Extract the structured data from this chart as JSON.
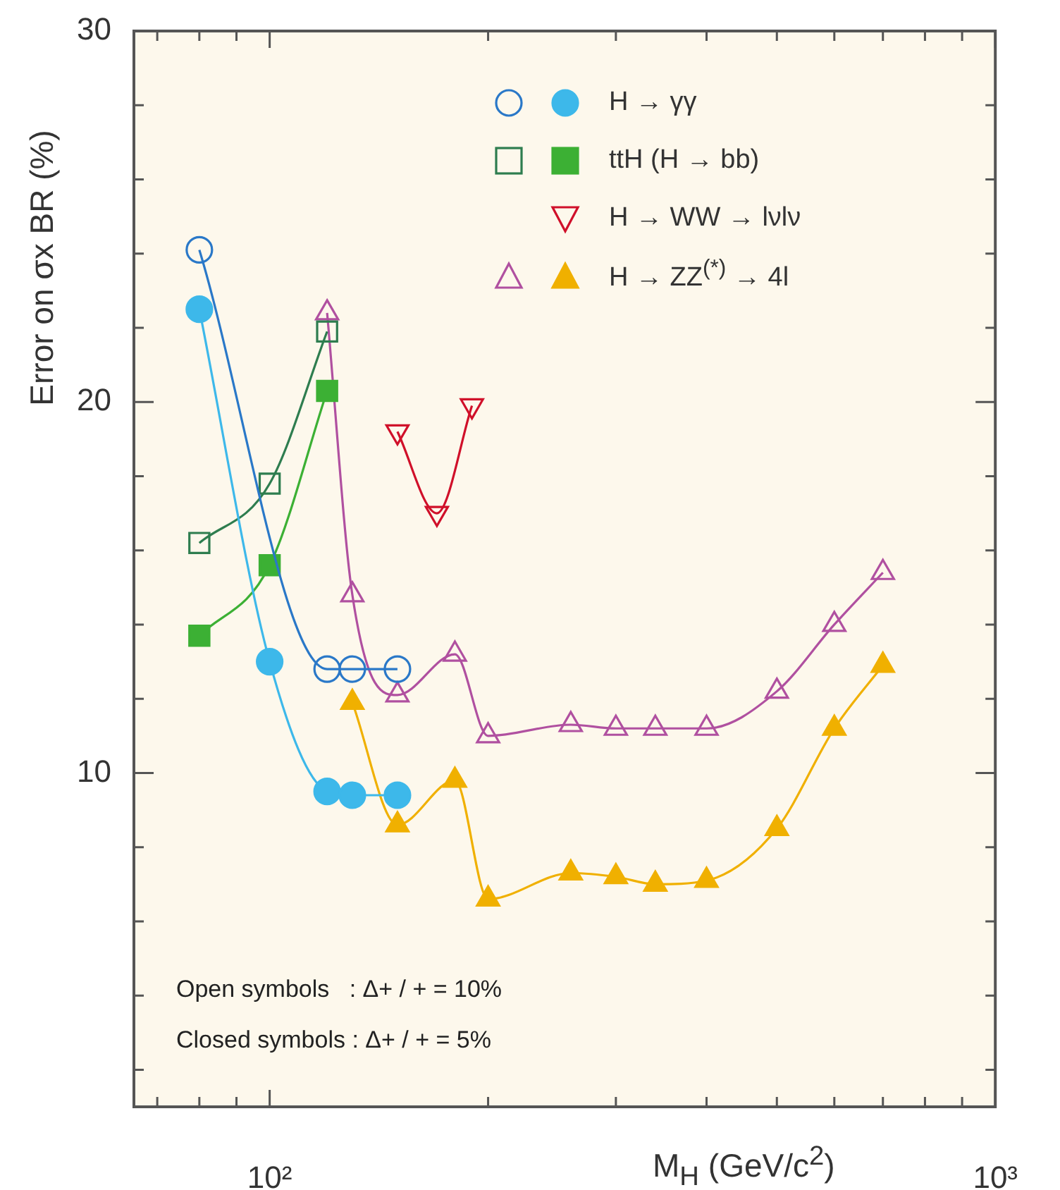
{
  "chart_data": {
    "type": "line",
    "xlabel": "M$_{H}$ (GeV/c$^{2}$)",
    "ylabel": "Error on σx BR (%)",
    "log": "x",
    "legend": "top right",
    "xlim": [
      65,
      1000
    ],
    "ylim": [
      1,
      30
    ],
    "xticks": [
      {
        "value": 70,
        "label": null
      },
      {
        "value": 80,
        "label": null
      },
      {
        "value": 90,
        "label": null
      },
      {
        "value": 100,
        "label": "10²"
      },
      {
        "value": 200,
        "label": null
      },
      {
        "value": 300,
        "label": null
      },
      {
        "value": 400,
        "label": null
      },
      {
        "value": 500,
        "label": null
      },
      {
        "value": 600,
        "label": null
      },
      {
        "value": 700,
        "label": null
      },
      {
        "value": 800,
        "label": null
      },
      {
        "value": 900,
        "label": null
      },
      {
        "value": 1000,
        "label": "10³"
      }
    ],
    "yticks": [
      {
        "value": 2,
        "label": null
      },
      {
        "value": 4,
        "label": null
      },
      {
        "value": 6,
        "label": null
      },
      {
        "value": 8,
        "label": null
      },
      10,
      {
        "value": 12,
        "label": null
      },
      {
        "value": 14,
        "label": null
      },
      {
        "value": 16,
        "label": null
      },
      {
        "value": 18,
        "label": null
      },
      20,
      {
        "value": 22,
        "label": null
      },
      {
        "value": 24,
        "label": null
      },
      {
        "value": 26,
        "label": null
      },
      {
        "value": 28,
        "label": null
      },
      30
    ],
    "annotations": [
      "Open symbols   : Δ+ / + = 10%",
      "Closed symbols : Δ+ / + = 5%"
    ],
    "series": [
      {
        "color": "#2a78c8",
        "marker": "circle_open",
        "x": [
          80,
          120,
          130,
          150
        ],
        "values": [
          24.1,
          12.8,
          12.8,
          12.8
        ]
      },
      {
        "name": "H → γγ",
        "color": "#3db8ea",
        "marker": "circle",
        "x": [
          80,
          100,
          120,
          130,
          150
        ],
        "values": [
          22.5,
          13.0,
          9.5,
          9.4,
          9.4
        ]
      },
      {
        "color": "#2e7d4f",
        "marker": "square_open",
        "x": [
          80,
          100,
          120
        ],
        "values": [
          16.2,
          17.8,
          21.9
        ]
      },
      {
        "name": "ttH (H → bb)",
        "color": "#3cb034",
        "marker": "square",
        "x": [
          80,
          100,
          120
        ],
        "values": [
          13.7,
          15.6,
          20.3
        ]
      },
      {
        "name": "H → WW → lνlν",
        "color": "#d0102a",
        "marker": "triangle_down_open",
        "x": [
          150,
          170,
          190
        ],
        "values": [
          19.2,
          17.0,
          19.9
        ]
      },
      {
        "color": "#b050a0",
        "marker": "triangle_open",
        "x": [
          120,
          130,
          150,
          180,
          200,
          260,
          300,
          340,
          400,
          500,
          600,
          700
        ],
        "values": [
          22.4,
          14.8,
          12.1,
          13.2,
          11.0,
          11.3,
          11.2,
          11.2,
          11.2,
          12.2,
          14.0,
          15.4
        ]
      },
      {
        "name": "H → ZZ$^{(*)}$ → 4l",
        "color": "#f0b000",
        "marker": "triangle",
        "x": [
          130,
          150,
          180,
          200,
          260,
          300,
          340,
          400,
          500,
          600,
          700
        ],
        "values": [
          11.9,
          8.6,
          9.8,
          6.6,
          7.3,
          7.2,
          7.0,
          7.1,
          8.5,
          11.2,
          12.9
        ]
      }
    ]
  }
}
